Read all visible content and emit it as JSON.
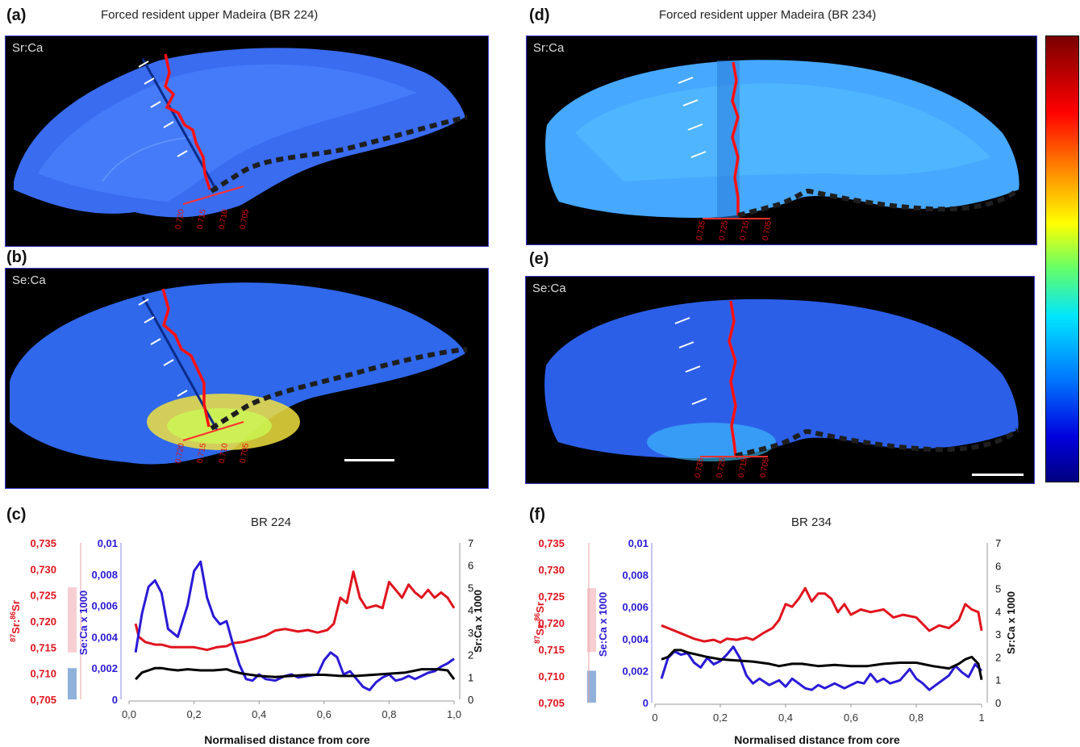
{
  "panels": {
    "a": {
      "label": "(a)",
      "title": "Forced resident upper Madeira (BR 224)",
      "element": "Sr:Ca"
    },
    "b": {
      "label": "(b)",
      "element": "Se:Ca"
    },
    "c": {
      "label": "(c)"
    },
    "d": {
      "label": "(d)",
      "title": "Forced resident upper Madeira (BR 234)",
      "element": "Sr:Ca"
    },
    "e": {
      "label": "(e)",
      "element": "Se:Ca"
    },
    "f": {
      "label": "(f)"
    }
  },
  "transect_labels": {
    "left": [
      "0.720",
      "0.715",
      "0.710",
      "0.705"
    ],
    "right": [
      "0.735",
      "0.725",
      "0.715",
      "0.705"
    ]
  },
  "colors": {
    "isotope": "#e0141e",
    "se_ca": "#2a1ad6",
    "sr_ca": "#000000",
    "transect_path": "#222222",
    "isotope_range_pink": "#f7cfd3",
    "isotope_range_blue": "#8fb1db"
  },
  "chart_data": [
    {
      "type": "line",
      "title": "BR 224",
      "xlabel": "Normalised distance from core",
      "x_ticks": [
        "0,0",
        "0,2",
        "0,4",
        "0,6",
        "0,8",
        "1,0"
      ],
      "xlim": [
        0,
        1
      ],
      "y_isotope": {
        "label": "87Sr:86Sr",
        "ticks": [
          "0,735",
          "0,730",
          "0,725",
          "0,720",
          "0,715",
          "0,710",
          "0,705"
        ],
        "ylim": [
          0.705,
          0.735
        ]
      },
      "y_se": {
        "label": "Se:Ca x 1000",
        "ticks": [
          "0,01",
          "0,008",
          "0,006",
          "0,004",
          "0,002",
          "0"
        ],
        "ylim": [
          0,
          0.01
        ]
      },
      "y_sr": {
        "label": "Sr:Ca x 1000",
        "ticks": [
          "7",
          "6",
          "5",
          "4",
          "3",
          "2",
          "1",
          "0"
        ],
        "ylim": [
          0,
          7
        ]
      },
      "isotope_ranges": [
        {
          "ymin": 0.714,
          "ymax": 0.7265,
          "color": "pink"
        },
        {
          "ymin": 0.705,
          "ymax": 0.711,
          "color": "blue"
        }
      ],
      "series": [
        {
          "name": "87Sr:86Sr",
          "axis": "isotope",
          "x": [
            0.02,
            0.03,
            0.05,
            0.08,
            0.1,
            0.13,
            0.16,
            0.2,
            0.24,
            0.27,
            0.3,
            0.32,
            0.35,
            0.38,
            0.42,
            0.45,
            0.48,
            0.52,
            0.55,
            0.58,
            0.61,
            0.63,
            0.65,
            0.67,
            0.69,
            0.71,
            0.73,
            0.76,
            0.78,
            0.8,
            0.82,
            0.84,
            0.86,
            0.88,
            0.9,
            0.92,
            0.94,
            0.96,
            0.98,
            1.0
          ],
          "y": [
            0.7195,
            0.717,
            0.716,
            0.7155,
            0.7155,
            0.715,
            0.715,
            0.715,
            0.7145,
            0.715,
            0.7152,
            0.7158,
            0.716,
            0.7165,
            0.7172,
            0.7182,
            0.7185,
            0.718,
            0.7183,
            0.7178,
            0.7183,
            0.7195,
            0.7245,
            0.7235,
            0.7295,
            0.7245,
            0.7225,
            0.723,
            0.7225,
            0.7275,
            0.726,
            0.7245,
            0.727,
            0.7255,
            0.7245,
            0.726,
            0.7245,
            0.7255,
            0.7245,
            0.7225
          ]
        },
        {
          "name": "Se:Ca x 1000",
          "axis": "se",
          "x": [
            0.02,
            0.04,
            0.06,
            0.08,
            0.1,
            0.12,
            0.15,
            0.18,
            0.2,
            0.22,
            0.24,
            0.26,
            0.28,
            0.3,
            0.32,
            0.34,
            0.36,
            0.38,
            0.4,
            0.42,
            0.45,
            0.48,
            0.5,
            0.52,
            0.55,
            0.58,
            0.6,
            0.62,
            0.64,
            0.66,
            0.68,
            0.7,
            0.72,
            0.74,
            0.76,
            0.78,
            0.8,
            0.82,
            0.84,
            0.86,
            0.88,
            0.9,
            0.92,
            0.94,
            0.96,
            0.98,
            1.0
          ],
          "y": [
            0.003,
            0.0055,
            0.0072,
            0.0076,
            0.0068,
            0.0045,
            0.004,
            0.006,
            0.0082,
            0.0088,
            0.0065,
            0.0053,
            0.0048,
            0.005,
            0.0035,
            0.0022,
            0.0013,
            0.0012,
            0.0016,
            0.0013,
            0.0012,
            0.0015,
            0.0016,
            0.0014,
            0.0015,
            0.0016,
            0.0025,
            0.003,
            0.0027,
            0.0016,
            0.0018,
            0.0013,
            0.0008,
            0.0006,
            0.0011,
            0.0014,
            0.0016,
            0.0012,
            0.0013,
            0.0015,
            0.0013,
            0.0015,
            0.0017,
            0.0018,
            0.0021,
            0.0023,
            0.0026
          ]
        },
        {
          "name": "Sr:Ca x 1000",
          "axis": "sr",
          "x": [
            0.02,
            0.04,
            0.06,
            0.08,
            0.1,
            0.12,
            0.15,
            0.18,
            0.22,
            0.26,
            0.3,
            0.32,
            0.35,
            0.4,
            0.45,
            0.5,
            0.55,
            0.6,
            0.65,
            0.7,
            0.75,
            0.8,
            0.85,
            0.9,
            0.95,
            0.98,
            1.0
          ],
          "y": [
            0.9,
            1.2,
            1.3,
            1.4,
            1.4,
            1.35,
            1.3,
            1.35,
            1.3,
            1.3,
            1.35,
            1.25,
            1.15,
            1.05,
            1.0,
            1.05,
            1.1,
            1.1,
            1.05,
            1.05,
            1.1,
            1.15,
            1.2,
            1.35,
            1.35,
            1.3,
            0.9
          ]
        }
      ]
    },
    {
      "type": "line",
      "title": "BR 234",
      "xlabel": "Normalised distance from core",
      "x_ticks": [
        "0",
        "0,2",
        "0,4",
        "0,6",
        "0,8",
        "1"
      ],
      "xlim": [
        0,
        1
      ],
      "y_isotope": {
        "label": "87Sr:86Sr",
        "ticks": [
          "0,735",
          "0,730",
          "0,725",
          "0,720",
          "0,715",
          "0,710",
          "0,705"
        ],
        "ylim": [
          0.705,
          0.735
        ]
      },
      "y_se": {
        "label": "Se:Ca x 1000",
        "ticks": [
          "0,01",
          "0,008",
          "0,006",
          "0,004",
          "0,002",
          "0"
        ],
        "ylim": [
          0,
          0.01
        ]
      },
      "y_sr": {
        "label": "Sr:Ca x 1000",
        "ticks": [
          "7",
          "6",
          "5",
          "4",
          "3",
          "2",
          "1",
          "0"
        ],
        "ylim": [
          0,
          7
        ]
      },
      "isotope_ranges": [
        {
          "ymin": 0.7145,
          "ymax": 0.7265,
          "color": "pink"
        },
        {
          "ymin": 0.705,
          "ymax": 0.711,
          "color": "blue"
        }
      ],
      "series": [
        {
          "name": "87Sr:86Sr",
          "axis": "isotope",
          "x": [
            0.02,
            0.04,
            0.06,
            0.08,
            0.1,
            0.12,
            0.15,
            0.18,
            0.2,
            0.22,
            0.25,
            0.28,
            0.3,
            0.33,
            0.36,
            0.38,
            0.4,
            0.42,
            0.44,
            0.46,
            0.48,
            0.5,
            0.52,
            0.54,
            0.56,
            0.58,
            0.6,
            0.63,
            0.66,
            0.7,
            0.73,
            0.76,
            0.8,
            0.84,
            0.87,
            0.9,
            0.93,
            0.95,
            0.97,
            0.99,
            1.0
          ],
          "y": [
            0.7195,
            0.719,
            0.7185,
            0.718,
            0.7175,
            0.717,
            0.7165,
            0.7168,
            0.7163,
            0.717,
            0.7168,
            0.7172,
            0.7168,
            0.718,
            0.719,
            0.7205,
            0.7235,
            0.723,
            0.7245,
            0.7265,
            0.724,
            0.7255,
            0.7255,
            0.7245,
            0.722,
            0.7235,
            0.7215,
            0.7225,
            0.722,
            0.7225,
            0.721,
            0.7215,
            0.721,
            0.7185,
            0.7195,
            0.719,
            0.7205,
            0.7235,
            0.7225,
            0.722,
            0.7185
          ]
        },
        {
          "name": "Se:Ca x 1000",
          "axis": "se",
          "x": [
            0.02,
            0.04,
            0.06,
            0.08,
            0.1,
            0.12,
            0.14,
            0.16,
            0.18,
            0.2,
            0.22,
            0.24,
            0.26,
            0.28,
            0.3,
            0.32,
            0.35,
            0.38,
            0.4,
            0.42,
            0.44,
            0.46,
            0.48,
            0.5,
            0.52,
            0.55,
            0.58,
            0.6,
            0.62,
            0.64,
            0.66,
            0.68,
            0.7,
            0.72,
            0.75,
            0.78,
            0.8,
            0.82,
            0.84,
            0.86,
            0.88,
            0.9,
            0.92,
            0.94,
            0.96,
            0.98,
            1.0
          ],
          "y": [
            0.0015,
            0.0028,
            0.0032,
            0.003,
            0.0031,
            0.0025,
            0.0022,
            0.0028,
            0.0024,
            0.0026,
            0.003,
            0.0035,
            0.0028,
            0.0017,
            0.0012,
            0.0015,
            0.0011,
            0.0014,
            0.001,
            0.0015,
            0.0012,
            0.0009,
            0.0008,
            0.0011,
            0.0009,
            0.0012,
            0.0009,
            0.0011,
            0.0013,
            0.0012,
            0.0018,
            0.0013,
            0.0015,
            0.0012,
            0.0014,
            0.0021,
            0.0015,
            0.0012,
            0.0008,
            0.0011,
            0.0014,
            0.0017,
            0.0023,
            0.0019,
            0.0016,
            0.0024,
            0.002
          ]
        },
        {
          "name": "Sr:Ca x 1000",
          "axis": "sr",
          "x": [
            0.02,
            0.04,
            0.06,
            0.08,
            0.1,
            0.13,
            0.16,
            0.2,
            0.25,
            0.3,
            0.35,
            0.38,
            0.42,
            0.45,
            0.5,
            0.55,
            0.6,
            0.65,
            0.7,
            0.75,
            0.8,
            0.85,
            0.9,
            0.93,
            0.95,
            0.97,
            0.99,
            1.0
          ],
          "y": [
            1.9,
            2.0,
            2.3,
            2.3,
            2.2,
            2.1,
            2.0,
            1.9,
            1.85,
            1.8,
            1.7,
            1.6,
            1.7,
            1.7,
            1.6,
            1.65,
            1.6,
            1.6,
            1.7,
            1.75,
            1.75,
            1.6,
            1.5,
            1.7,
            1.9,
            2.0,
            1.7,
            1.0
          ]
        }
      ]
    }
  ]
}
